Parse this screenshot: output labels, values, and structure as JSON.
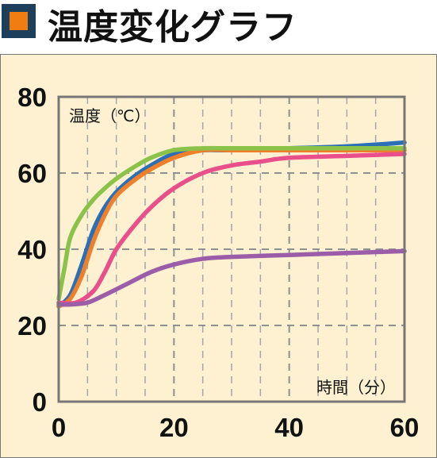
{
  "header": {
    "title": "温度変化グラフ",
    "icon": "square-bullet-icon",
    "icon_colors": {
      "outer": "#1d3f5c",
      "inner": "#ef7d12"
    }
  },
  "chart_data": {
    "type": "line",
    "title": "温度変化グラフ",
    "xlabel": "時間（分）",
    "ylabel": "温度（℃）",
    "xlim": [
      0,
      60
    ],
    "ylim": [
      0,
      80
    ],
    "x_ticks": [
      0,
      20,
      40,
      60
    ],
    "y_ticks": [
      0,
      20,
      40,
      60,
      80
    ],
    "grid": true,
    "legend": "none",
    "series": [
      {
        "color": "#2b6fb6",
        "x": [
          0,
          2,
          4,
          6,
          8,
          10,
          13,
          16,
          20,
          25,
          30,
          40,
          50,
          60
        ],
        "y": [
          25,
          28,
          36,
          45,
          51,
          55,
          59,
          62,
          65,
          66,
          66,
          66.5,
          67,
          68
        ]
      },
      {
        "color": "#f07f2a",
        "x": [
          0,
          2,
          4,
          6,
          8,
          10,
          13,
          16,
          20,
          25,
          30,
          40,
          50,
          60
        ],
        "y": [
          25,
          27,
          33,
          42,
          49,
          54,
          58,
          61,
          64,
          66,
          66,
          66,
          66,
          66
        ]
      },
      {
        "color": "#8bc34a",
        "x": [
          0,
          1,
          2,
          4,
          6,
          8,
          10,
          13,
          16,
          20,
          25,
          30,
          40,
          50,
          60
        ],
        "y": [
          27,
          35,
          43,
          49,
          53,
          56,
          58.5,
          61.5,
          64,
          66,
          66.5,
          66.5,
          66.5,
          66.5,
          66.5
        ]
      },
      {
        "color": "#e94f8a",
        "x": [
          0,
          3,
          6,
          8,
          10,
          13,
          16,
          20,
          25,
          30,
          35,
          40,
          50,
          60
        ],
        "y": [
          26,
          26,
          29,
          34,
          40,
          46,
          51,
          56,
          60,
          62,
          63,
          64,
          64.5,
          65
        ]
      },
      {
        "color": "#9b5da8",
        "x": [
          0,
          2,
          5,
          8,
          12,
          16,
          20,
          25,
          30,
          40,
          50,
          60
        ],
        "y": [
          25.5,
          25.5,
          26,
          28,
          31,
          34,
          36,
          37.5,
          38,
          38.5,
          39,
          39.5
        ]
      }
    ]
  }
}
